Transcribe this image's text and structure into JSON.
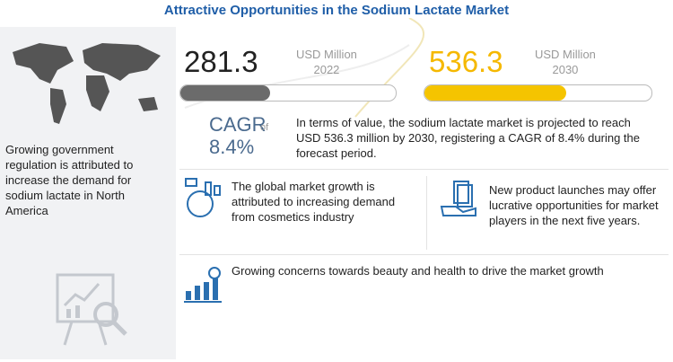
{
  "title": "Attractive Opportunities in the Sodium Lactate Market",
  "left_panel": {
    "text": "Growing government regulation is attributed to increase the demand for sodium lactate in North America"
  },
  "market_size": [
    {
      "value": "281.3",
      "unit": "USD Million",
      "year": "2022"
    },
    {
      "value": "536.3",
      "unit": "USD Million",
      "year": "2030"
    }
  ],
  "cagr": {
    "label": "CAGR",
    "connector": "of",
    "value": "8.4%"
  },
  "summary": "In terms of value, the sodium lactate market is projected to reach USD 536.3 million by 2030, registering a CAGR of 8.4% during the forecast period.",
  "insights": [
    "The global market growth is attributed to increasing demand from cosmetics industry",
    "New product launches may offer lucrative opportunities for market players in the next five years.",
    "Growing concerns towards beauty and health to drive the market growth"
  ]
}
